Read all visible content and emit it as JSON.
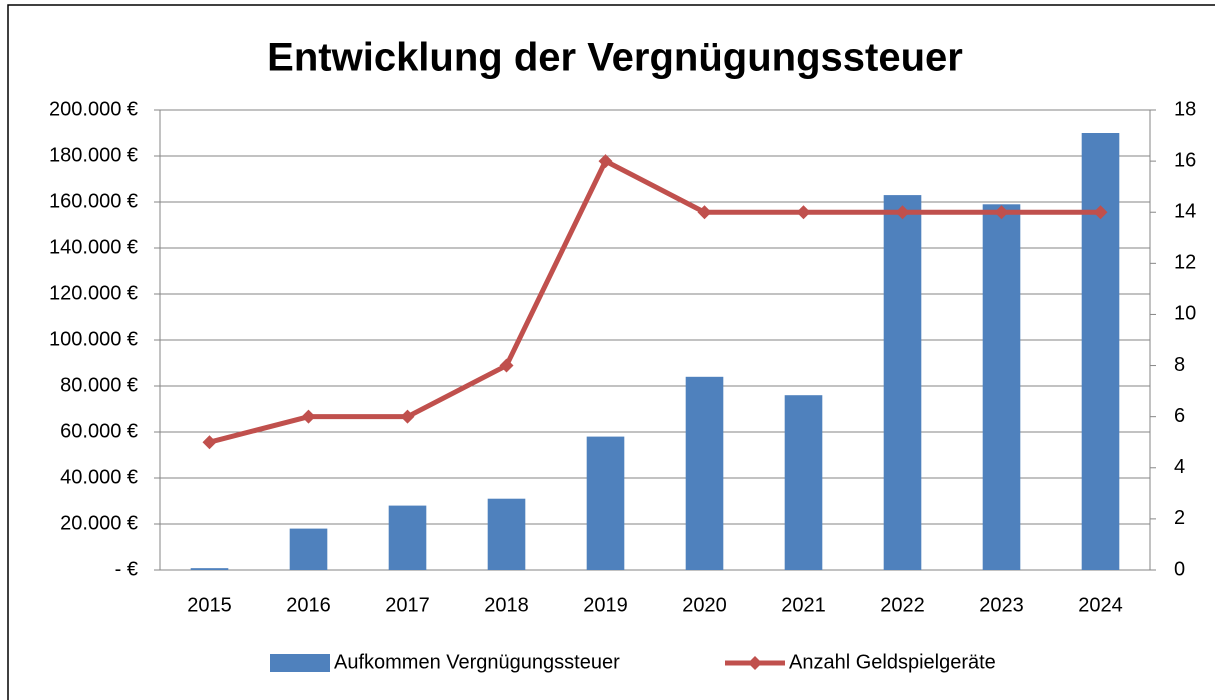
{
  "chart_data": {
    "type": "bar_line",
    "title": "Entwicklung der Vergnügungssteuer",
    "categories": [
      "2015",
      "2016",
      "2017",
      "2018",
      "2019",
      "2020",
      "2021",
      "2022",
      "2023",
      "2024"
    ],
    "series": [
      {
        "name": "Aufkommen Vergnügungssteuer",
        "type": "bar",
        "color": "#4f81bd",
        "values": [
          800,
          18000,
          28000,
          31000,
          58000,
          84000,
          76000,
          163000,
          159000,
          190000
        ]
      },
      {
        "name": "Anzahl Geldspielgeräte",
        "type": "line",
        "axis": "y2",
        "color": "#c0504d",
        "values": [
          5,
          6,
          6,
          8,
          16,
          14,
          14,
          14,
          14,
          14
        ]
      }
    ],
    "ylim": [
      0,
      200000
    ],
    "yticks": [
      {
        "value": 0,
        "label": "-   €"
      },
      {
        "value": 20000,
        "label": "20.000 €"
      },
      {
        "value": 40000,
        "label": "40.000 €"
      },
      {
        "value": 60000,
        "label": "60.000 €"
      },
      {
        "value": 80000,
        "label": "80.000 €"
      },
      {
        "value": 100000,
        "label": "100.000 €"
      },
      {
        "value": 120000,
        "label": "120.000 €"
      },
      {
        "value": 140000,
        "label": "140.000 €"
      },
      {
        "value": 160000,
        "label": "160.000 €"
      },
      {
        "value": 180000,
        "label": "180.000 €"
      },
      {
        "value": 200000,
        "label": "200.000 €"
      }
    ],
    "y2lim": [
      0,
      18
    ],
    "y2ticks": [
      0,
      2,
      4,
      6,
      8,
      10,
      12,
      14,
      16,
      18
    ],
    "grid": true,
    "legend": "bottom"
  }
}
